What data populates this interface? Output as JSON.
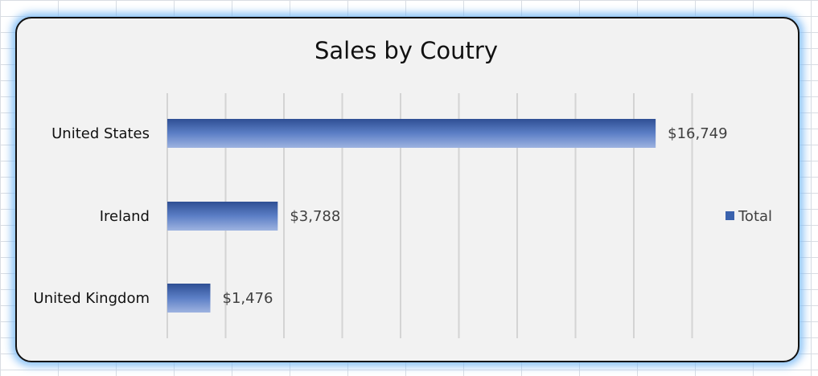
{
  "chart_data": {
    "type": "bar",
    "orientation": "horizontal",
    "title": "Sales by Coutry",
    "categories": [
      "United States",
      "Ireland",
      "United Kingdom"
    ],
    "series": [
      {
        "name": "Total",
        "values": [
          16749,
          3788,
          1476
        ],
        "labels": [
          "$16,749",
          "$3,788",
          "$1,476"
        ]
      }
    ],
    "xlim": [
      0,
      18000
    ],
    "grid": true,
    "legend": "right",
    "colors": {
      "bar_dark": "#2f4f94",
      "bar_light": "#9eb3e0",
      "legend_swatch": "#3a62ad"
    }
  }
}
